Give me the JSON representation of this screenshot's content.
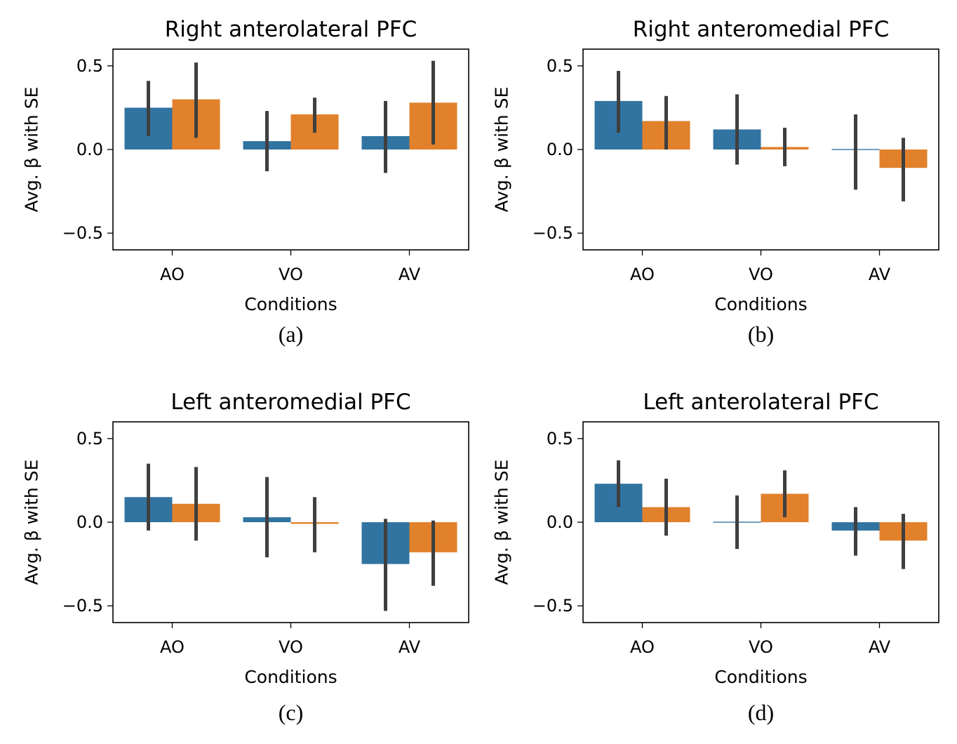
{
  "figure": {
    "colors": {
      "series_a": "#3274a1",
      "series_b": "#e1812c",
      "error_bar": "#3f3f3f"
    }
  },
  "chart_data": [
    {
      "type": "bar",
      "title": "Right anterolateral PFC",
      "caption": "(a)",
      "xlabel": "Conditions",
      "ylabel": "Avg. β with SE",
      "categories": [
        "AO",
        "VO",
        "AV"
      ],
      "ylim": [
        -0.6,
        0.6
      ],
      "yticks": [
        0.5,
        0.0,
        -0.5
      ],
      "ytick_labels": [
        "0.5",
        "0.0",
        "−0.5"
      ],
      "grid": false,
      "series": [
        {
          "values": [
            0.25,
            0.05,
            0.08
          ],
          "error_low": [
            0.08,
            -0.13,
            -0.14
          ],
          "error_high": [
            0.41,
            0.23,
            0.29
          ]
        },
        {
          "values": [
            0.3,
            0.21,
            0.28
          ],
          "error_low": [
            0.07,
            0.1,
            0.03
          ],
          "error_high": [
            0.52,
            0.31,
            0.53
          ]
        }
      ]
    },
    {
      "type": "bar",
      "title": "Right anteromedial PFC",
      "caption": "(b)",
      "xlabel": "Conditions",
      "ylabel": "Avg. β with SE",
      "categories": [
        "AO",
        "VO",
        "AV"
      ],
      "ylim": [
        -0.6,
        0.6
      ],
      "yticks": [
        0.5,
        0.0,
        -0.5
      ],
      "ytick_labels": [
        "0.5",
        "0.0",
        "−0.5"
      ],
      "grid": false,
      "series": [
        {
          "values": [
            0.29,
            0.12,
            -0.005
          ],
          "error_low": [
            0.1,
            -0.09,
            -0.24
          ],
          "error_high": [
            0.47,
            0.33,
            0.21
          ]
        },
        {
          "values": [
            0.17,
            0.015,
            -0.11
          ],
          "error_low": [
            0.0,
            -0.1,
            -0.31
          ],
          "error_high": [
            0.32,
            0.13,
            0.07
          ]
        }
      ]
    },
    {
      "type": "bar",
      "title": "Left anteromedial PFC",
      "caption": "(c)",
      "xlabel": "Conditions",
      "ylabel": "Avg. β with SE",
      "categories": [
        "AO",
        "VO",
        "AV"
      ],
      "ylim": [
        -0.6,
        0.6
      ],
      "yticks": [
        0.5,
        0.0,
        -0.5
      ],
      "ytick_labels": [
        "0.5",
        "0.0",
        "−0.5"
      ],
      "grid": false,
      "series": [
        {
          "values": [
            0.15,
            0.03,
            -0.25
          ],
          "error_low": [
            -0.05,
            -0.21,
            -0.53
          ],
          "error_high": [
            0.35,
            0.27,
            0.02
          ]
        },
        {
          "values": [
            0.11,
            -0.01,
            -0.18
          ],
          "error_low": [
            -0.11,
            -0.18,
            -0.38
          ],
          "error_high": [
            0.33,
            0.15,
            0.01
          ]
        }
      ]
    },
    {
      "type": "bar",
      "title": "Left anterolateral PFC",
      "caption": "(d)",
      "xlabel": "Conditions",
      "ylabel": "Avg. β with SE",
      "categories": [
        "AO",
        "VO",
        "AV"
      ],
      "ylim": [
        -0.6,
        0.6
      ],
      "yticks": [
        0.5,
        0.0,
        -0.5
      ],
      "ytick_labels": [
        "0.5",
        "0.0",
        "−0.5"
      ],
      "grid": false,
      "series": [
        {
          "values": [
            0.23,
            0.0,
            -0.05
          ],
          "error_low": [
            0.09,
            -0.16,
            -0.2
          ],
          "error_high": [
            0.37,
            0.16,
            0.09
          ]
        },
        {
          "values": [
            0.09,
            0.17,
            -0.11
          ],
          "error_low": [
            -0.08,
            0.03,
            -0.28
          ],
          "error_high": [
            0.26,
            0.31,
            0.05
          ]
        }
      ]
    }
  ]
}
